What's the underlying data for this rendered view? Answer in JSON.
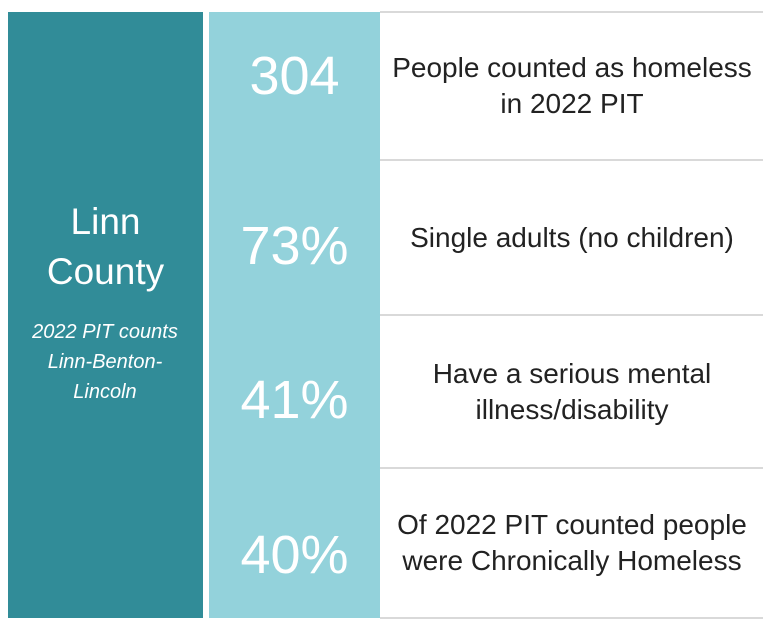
{
  "panel": {
    "title": "Linn County",
    "note": "2022 PIT counts Linn-Benton-Lincoln"
  },
  "stats": [
    {
      "number": "304",
      "description": "People counted as homeless in 2022 PIT"
    },
    {
      "number": "73%",
      "description": "Single adults (no children)"
    },
    {
      "number": "41%",
      "description": "Have a serious mental illness/disability"
    },
    {
      "number": "40%",
      "description": "Of 2022 PIT counted people were Chronically Homeless"
    }
  ]
}
